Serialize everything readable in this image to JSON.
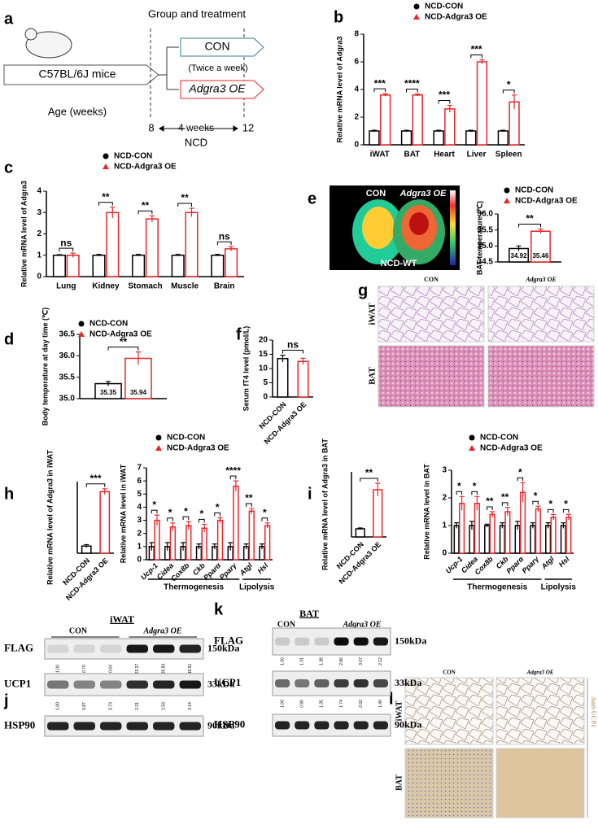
{
  "chart_data": [
    {
      "label": "b",
      "type": "bar",
      "ylabel": "Relative mRNA level of Adgra3",
      "categories": [
        "iWAT",
        "BAT",
        "Heart",
        "Liver",
        "Spleen"
      ],
      "series": [
        {
          "name": "NCD-CON",
          "color": "#000000",
          "marker": "circle",
          "values": [
            1,
            1,
            1,
            1,
            1
          ],
          "errors": [
            0.05,
            0.05,
            0.05,
            0.05,
            0.05
          ]
        },
        {
          "name": "NCD-Adgra3 OE",
          "color": "#e8262a",
          "marker": "triangle",
          "values": [
            3.6,
            3.6,
            2.6,
            6.0,
            3.1
          ],
          "errors": [
            0.1,
            0.08,
            0.25,
            0.15,
            0.5
          ]
        }
      ],
      "annotations": [
        "***",
        "****",
        "***",
        "***",
        "*"
      ],
      "ylim": [
        0,
        8
      ],
      "yticks": [
        0,
        2,
        4,
        6,
        8
      ]
    },
    {
      "label": "c",
      "type": "bar",
      "ylabel": "Relative mRNA level of Adgra3",
      "categories": [
        "Lung",
        "Kidney",
        "Stomach",
        "Muscle",
        "Brain"
      ],
      "series": [
        {
          "name": "NCD-CON",
          "color": "#000000",
          "marker": "circle",
          "values": [
            1,
            1,
            1,
            1,
            1
          ],
          "errors": [
            0.03,
            0.04,
            0.04,
            0.04,
            0.04
          ]
        },
        {
          "name": "NCD-Adgra3 OE",
          "color": "#e8262a",
          "marker": "triangle",
          "values": [
            1.0,
            3.0,
            2.7,
            3.0,
            1.3
          ],
          "errors": [
            0.1,
            0.25,
            0.15,
            0.2,
            0.1
          ]
        }
      ],
      "annotations": [
        "ns",
        "**",
        "**",
        "**",
        "ns"
      ],
      "ylim": [
        0,
        4
      ],
      "yticks": [
        0,
        1,
        2,
        3,
        4
      ]
    },
    {
      "label": "e",
      "type": "bar",
      "ylabel": "BAT temperature (℃)",
      "series": [
        {
          "name": "NCD-CON",
          "color": "#000000",
          "marker": "circle",
          "values": [
            34.92
          ],
          "errors": [
            0.08
          ]
        },
        {
          "name": "NCD-Adgra3 OE",
          "color": "#e8262a",
          "marker": "triangle",
          "values": [
            35.46
          ],
          "errors": [
            0.07
          ]
        }
      ],
      "show_values": true,
      "annotations": [
        "**"
      ],
      "ylim": [
        34.5,
        36.0
      ],
      "yticks": [
        {
          "value": 34.5,
          "label": "34.5"
        },
        {
          "value": 35.0,
          "label": "35.0"
        },
        {
          "value": 35.5,
          "label": "35.5"
        },
        {
          "value": 36.0,
          "label": "36.0"
        }
      ]
    },
    {
      "label": "d",
      "type": "bar",
      "ylabel": "Body temperature at day time (℃)",
      "series": [
        {
          "name": "NCD-CON",
          "color": "#000000",
          "marker": "circle",
          "values": [
            35.35
          ],
          "errors": [
            0.05
          ]
        },
        {
          "name": "NCD-Adgra3 OE",
          "color": "#e8262a",
          "marker": "triangle",
          "values": [
            35.94
          ],
          "errors": [
            0.15
          ]
        }
      ],
      "show_values": true,
      "annotations": [
        "**"
      ],
      "ylim": [
        35.0,
        36.5
      ],
      "yticks": [
        {
          "value": 35.0,
          "label": "35.0"
        },
        {
          "value": 35.5,
          "label": "35.5"
        },
        {
          "value": 36.0,
          "label": "36.0"
        },
        {
          "value": 36.5,
          "label": "36.5"
        }
      ]
    },
    {
      "label": "f",
      "type": "bar",
      "ylabel": "Serum fT4 level (pmol/L)",
      "categories": [
        "NCD-CON",
        "NCD-Adgra3 OE"
      ],
      "values": [
        13.5,
        12.5
      ],
      "errors": [
        1.2,
        1.1
      ],
      "colors": [
        "#000000",
        "#e8262a"
      ],
      "annotations": [
        "ns"
      ],
      "ylim": [
        0,
        20
      ],
      "yticks": [
        0,
        5,
        10,
        15,
        20
      ]
    },
    {
      "label": "h",
      "type": "bar",
      "ylabel": "Relative mRNA level of Adgra3 in iWAT",
      "categories": [
        "NCD-CON",
        "NCD-Adgra3 OE"
      ],
      "values": [
        1,
        8.6
      ],
      "errors": [
        0.2,
        0.4
      ],
      "colors": [
        "#000000",
        "#e8262a"
      ],
      "annotations": [
        "***"
      ],
      "ylim": [
        0,
        10
      ]
    },
    {
      "type": "bar",
      "ylabel": "Relative mRNA level in iWAT",
      "categories": [
        "Ucp-1",
        "Cidea",
        "Cox8b",
        "Ckb",
        "Pparα",
        "Pparγ",
        "Atgl",
        "Hsl"
      ],
      "series": [
        {
          "name": "NCD-CON",
          "color": "#000000",
          "marker": "circle",
          "values": [
            1,
            1,
            1,
            1,
            1,
            1,
            1,
            1
          ],
          "errors": [
            0.3,
            0.3,
            0.3,
            0.2,
            0.2,
            0.3,
            0.2,
            0.2
          ]
        },
        {
          "name": "NCD-Adgra3 OE",
          "color": "#e8262a",
          "marker": "triangle",
          "values": [
            3.0,
            2.5,
            2.6,
            2.4,
            3.0,
            5.6,
            3.7,
            2.6
          ],
          "errors": [
            0.4,
            0.3,
            0.3,
            0.3,
            0.2,
            0.4,
            0.2,
            0.2
          ]
        }
      ],
      "annotations": [
        "*",
        "*",
        "*",
        "*",
        "*",
        "****",
        "**",
        "*"
      ],
      "group_labels": [
        "Thermogenesis",
        "Lipolysis"
      ],
      "ylim": [
        0,
        7
      ],
      "yticks": [
        0,
        1,
        2,
        3,
        4,
        5,
        6,
        7
      ]
    },
    {
      "label": "i",
      "type": "bar",
      "ylabel": "Relative mRNA level of Adgra3 in BAT",
      "categories": [
        "NCD-CON",
        "NCD-Adgra3 OE"
      ],
      "values": [
        1,
        5.8
      ],
      "errors": [
        0.1,
        0.8
      ],
      "colors": [
        "#000000",
        "#e8262a"
      ],
      "annotations": [
        "**"
      ],
      "ylim": [
        0,
        8
      ]
    },
    {
      "type": "bar",
      "ylabel": "Relative mRNA level in BAT",
      "categories": [
        "Ucp-1",
        "Cidea",
        "Cox8b",
        "Ckb",
        "Pparα",
        "Pparγ",
        "Atgl",
        "Hsl"
      ],
      "series": [
        {
          "name": "NCD-CON",
          "color": "#000000",
          "marker": "circle",
          "values": [
            1,
            1,
            1,
            1,
            1,
            1,
            1,
            1
          ],
          "errors": [
            0.1,
            0.15,
            0.05,
            0.1,
            0.15,
            0.1,
            0.1,
            0.1
          ]
        },
        {
          "name": "NCD-Adgra3 OE",
          "color": "#e8262a",
          "marker": "triangle",
          "values": [
            1.8,
            1.8,
            1.4,
            1.5,
            2.2,
            1.6,
            1.3,
            1.3
          ],
          "errors": [
            0.25,
            0.25,
            0.1,
            0.15,
            0.35,
            0.1,
            0.1,
            0.1
          ]
        }
      ],
      "annotations": [
        "*",
        "*",
        "**",
        "**",
        "*",
        "*",
        "*",
        "*"
      ],
      "group_labels": [
        "Thermogenesis",
        "Lipolysis"
      ],
      "ylim": [
        0,
        3
      ],
      "yticks": [
        0,
        1,
        2,
        3
      ]
    }
  ],
  "diagram": {
    "label": "a",
    "mouse": "C57BL/6J mice",
    "header": "Group and treatment",
    "groups": [
      "CON",
      "Adgra3 OE"
    ],
    "note": "(Twice a week)",
    "age_label": "Age (weeks)",
    "start": "8",
    "duration": "4 weeks",
    "end": "12",
    "diet": "NCD"
  },
  "thermal_image": {
    "groups": [
      "CON",
      "Adgra3 OE"
    ],
    "condition": "NCD-WT"
  },
  "histology": {
    "label": "g",
    "columns": [
      "CON",
      "Adgra3 OE"
    ],
    "rows": [
      "iWAT",
      "BAT"
    ]
  },
  "ihc": {
    "label": "l",
    "columns": [
      "CON",
      "Adgra3 OE"
    ],
    "rows": [
      "iWAT",
      "BAT"
    ],
    "stain": "Anti-UCP1"
  },
  "blots": [
    {
      "label": "j",
      "tissue": "iWAT",
      "groups": [
        "CON",
        "Adgra3 OE"
      ],
      "rows": [
        {
          "name": "FLAG",
          "size": "150kDa",
          "quant": [
            "1.00",
            "0.70",
            "0.64",
            "22.27",
            "25.50",
            "19.51"
          ]
        },
        {
          "name": "UCP1",
          "size": "33kDa",
          "quant": [
            "1.00",
            "0.87",
            "0.73",
            "2.21",
            "2.53",
            "3.14"
          ]
        },
        {
          "name": "HSP90",
          "size": "90kDa"
        }
      ]
    },
    {
      "label": "k",
      "tissue": "BAT",
      "groups": [
        "CON",
        "Adgra3 OE"
      ],
      "rows": [
        {
          "name": "FLAG",
          "size": "150kDa",
          "quant": [
            "1.00",
            "1.41",
            "1.38",
            "2.86",
            "3.07",
            "2.12"
          ]
        },
        {
          "name": "UCP1",
          "size": "33kDa",
          "quant": [
            "1.00",
            "0.90",
            "1.35",
            "1.74",
            "2.02",
            "1.40"
          ]
        },
        {
          "name": "HSP90",
          "size": "90kDa"
        }
      ]
    }
  ]
}
